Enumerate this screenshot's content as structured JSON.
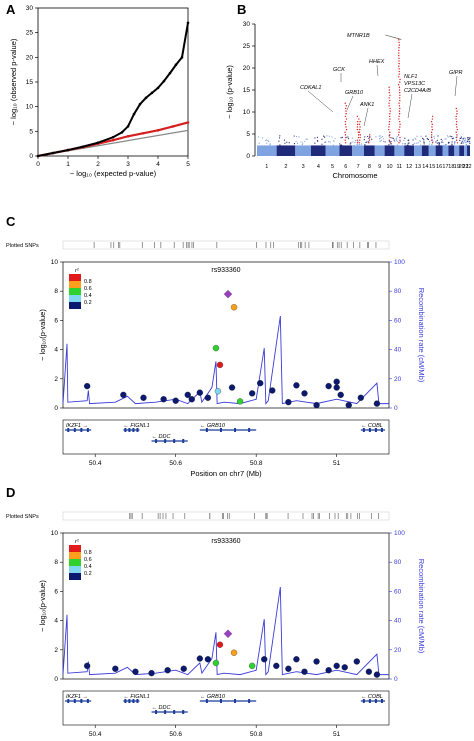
{
  "panels": {
    "A": {
      "label": "A",
      "xlabel": "− log₁₀ (expected p-value)",
      "ylabel": "− log₁₀ (observed p-value)",
      "xticks": [
        "0",
        "1",
        "2",
        "3",
        "4",
        "5"
      ],
      "yticks": [
        "0",
        "5",
        "10",
        "15",
        "20",
        "25",
        "30"
      ]
    },
    "B": {
      "label": "B",
      "xlabel": "Chromosome",
      "ylabel": "− log₁₀ (p-value)",
      "yticks": [
        "0",
        "5",
        "10",
        "15",
        "20",
        "25",
        "30"
      ],
      "chromosomes": [
        "1",
        "2",
        "3",
        "4",
        "5",
        "6",
        "7",
        "8",
        "9",
        "10",
        "11",
        "12",
        "13",
        "14",
        "15",
        "16",
        "17",
        "18",
        "19",
        "20",
        "21",
        "22"
      ],
      "genes": [
        "CDKAL1",
        "GCK",
        "GRB10",
        "ANK1",
        "HHEX",
        "MTNR1B",
        "NLF1",
        "VPS13C",
        "C2CD4A/B",
        "GIPR"
      ]
    },
    "C": {
      "label": "C",
      "plotted": "Plotted SNPs",
      "snp": "rs933360",
      "ylabel": "− log₁₀(p-value)",
      "y2label": "Recombination rate (cM/Mb)",
      "xlabel": "Position on chr7 (Mb)",
      "yticks": [
        "0",
        "2",
        "4",
        "6",
        "8",
        "10"
      ],
      "y2ticks": [
        "0",
        "20",
        "40",
        "60",
        "80",
        "100"
      ],
      "xticks": [
        "50.4",
        "50.6",
        "50.8",
        "51"
      ],
      "legend_title": "r²",
      "legend_ticks": [
        "0.8",
        "0.6",
        "0.4",
        "0.2"
      ],
      "genes": [
        "IKZF1",
        "FIGNL1",
        "DDC",
        "GRB10",
        "COBL"
      ]
    },
    "D": {
      "label": "D",
      "plotted": "Plotted SNPs",
      "snp": "rs933360",
      "ylabel": "− log₁₀(p-value)",
      "y2label": "Recombination rate (cM/Mb)",
      "xlabel": "Position on chr7 (Mb)",
      "yticks": [
        "0",
        "2",
        "4",
        "6",
        "8",
        "10"
      ],
      "y2ticks": [
        "0",
        "20",
        "40",
        "60",
        "80",
        "100"
      ],
      "xticks": [
        "50.4",
        "50.6",
        "50.8",
        "51"
      ],
      "legend_title": "r²",
      "legend_ticks": [
        "0.8",
        "0.6",
        "0.4",
        "0.2"
      ],
      "genes": [
        "IKZF1",
        "FIGNL1",
        "DDC",
        "GRB10",
        "COBL"
      ]
    }
  },
  "colors": {
    "recomb": "#3b3bd9",
    "manhattan_dark": "#1f2a7a",
    "manhattan_light": "#7fa3e0",
    "qq_black": "#000000",
    "qq_red": "#d62020",
    "r2_08": "#e31a1c",
    "r2_06": "#ff9f1c",
    "r2_04": "#2fd12f",
    "r2_02": "#7fd7f0",
    "r2_00": "#0b1a6e",
    "lead": "#9b3fc2"
  },
  "chart_data": [
    {
      "panel": "A",
      "type": "scatter",
      "title": "",
      "xlabel": "− log₁₀ (expected p-value)",
      "ylabel": "− log₁₀ (observed p-value)",
      "xlim": [
        0,
        5
      ],
      "ylim": [
        0,
        30
      ],
      "series": [
        {
          "color": "#000000",
          "x": [
            0,
            0.5,
            1,
            1.5,
            2,
            2.5,
            2.8,
            3,
            3.2,
            3.4,
            3.6,
            3.8,
            4,
            4.2,
            4.4,
            4.6,
            4.8,
            5
          ],
          "y": [
            0,
            0.6,
            1.2,
            1.9,
            2.7,
            3.8,
            4.8,
            6,
            8.5,
            10.5,
            11.8,
            12.8,
            13.8,
            15.2,
            16.8,
            18.5,
            20,
            27
          ]
        },
        {
          "color": "#d62020",
          "x": [
            0,
            0.5,
            1,
            1.5,
            2,
            2.5,
            3,
            3.5,
            4,
            4.5,
            5
          ],
          "y": [
            0,
            0.6,
            1.2,
            1.8,
            2.5,
            3.2,
            4,
            4.6,
            5.2,
            6,
            6.8
          ]
        },
        {
          "color": "#888888",
          "x": [
            0,
            5
          ],
          "y": [
            0,
            5.2
          ]
        }
      ]
    },
    {
      "panel": "B",
      "type": "scatter",
      "title": "",
      "xlabel": "Chromosome",
      "ylabel": "− log₁₀ (p-value)",
      "ylim": [
        0,
        30
      ],
      "peaks": [
        {
          "gene": "CDKAL1",
          "chromosome": 6,
          "y": 12
        },
        {
          "gene": "GCK",
          "chromosome": 7,
          "y": 9.5
        },
        {
          "gene": "GRB10",
          "chromosome": 7,
          "y": 8
        },
        {
          "gene": "ANK1",
          "chromosome": 8,
          "y": 5
        },
        {
          "gene": "HHEX",
          "chromosome": 10,
          "y": 16
        },
        {
          "gene": "MTNR1B",
          "chromosome": 11,
          "y": 27
        },
        {
          "gene": "C2CD4A/B",
          "chromosome": 15,
          "y": 9
        },
        {
          "gene": "GIPR",
          "chromosome": 19,
          "y": 11
        }
      ]
    },
    {
      "panel": "C",
      "type": "scatter",
      "title": "rs933360",
      "xlabel": "Position on chr7 (Mb)",
      "ylabel": "− log₁₀(p-value)",
      "xlim": [
        50.32,
        51.13
      ],
      "ylim": [
        0,
        10
      ],
      "series": [
        {
          "r2": "lead",
          "x": [
            50.73
          ],
          "y": [
            7.8
          ]
        },
        {
          "r2": "0.6",
          "x": [
            50.745
          ],
          "y": [
            6.9
          ]
        },
        {
          "r2": "0.8",
          "x": [
            50.71
          ],
          "y": [
            2.95
          ]
        },
        {
          "r2": "0.4",
          "x": [
            50.7,
            50.76
          ],
          "y": [
            4.1,
            0.45
          ]
        },
        {
          "r2": "0.2",
          "x": [
            50.705
          ],
          "y": [
            1.15
          ]
        },
        {
          "r2": "0.0",
          "x": [
            50.38,
            50.47,
            50.52,
            50.57,
            50.63,
            50.66,
            50.68,
            50.74,
            50.79,
            50.81,
            50.84,
            50.88,
            50.9,
            50.92,
            50.95,
            50.98,
            51.0,
            51.0,
            51.01,
            51.03,
            51.06,
            51.1,
            50.6,
            50.64
          ],
          "y": [
            1.5,
            0.9,
            0.7,
            0.6,
            0.9,
            1.05,
            0.7,
            1.4,
            1.0,
            1.7,
            1.2,
            0.4,
            1.55,
            1.0,
            0.2,
            1.5,
            1.8,
            1.4,
            0.9,
            0.2,
            0.7,
            0.3,
            0.5,
            0.6
          ]
        }
      ]
    },
    {
      "panel": "D",
      "type": "scatter",
      "title": "rs933360",
      "xlabel": "Position on chr7 (Mb)",
      "ylabel": "− log₁₀(p-value)",
      "xlim": [
        50.32,
        51.13
      ],
      "ylim": [
        0,
        10
      ],
      "series": [
        {
          "r2": "lead",
          "x": [
            50.73
          ],
          "y": [
            3.1
          ]
        },
        {
          "r2": "0.6",
          "x": [
            50.745
          ],
          "y": [
            1.8
          ]
        },
        {
          "r2": "0.8",
          "x": [
            50.71
          ],
          "y": [
            2.35
          ]
        },
        {
          "r2": "0.4",
          "x": [
            50.7,
            50.79
          ],
          "y": [
            1.1,
            0.9
          ]
        },
        {
          "r2": "0.0",
          "x": [
            50.38,
            50.45,
            50.5,
            50.54,
            50.58,
            50.62,
            50.66,
            50.68,
            50.82,
            50.85,
            50.88,
            50.9,
            50.92,
            50.95,
            50.98,
            51.0,
            51.02,
            51.05,
            51.08,
            51.1
          ],
          "y": [
            0.9,
            0.7,
            0.5,
            0.4,
            0.6,
            0.7,
            1.4,
            1.35,
            1.35,
            0.9,
            0.7,
            1.35,
            0.5,
            1.2,
            0.6,
            0.9,
            0.8,
            1.2,
            0.5,
            0.3
          ]
        }
      ]
    }
  ]
}
